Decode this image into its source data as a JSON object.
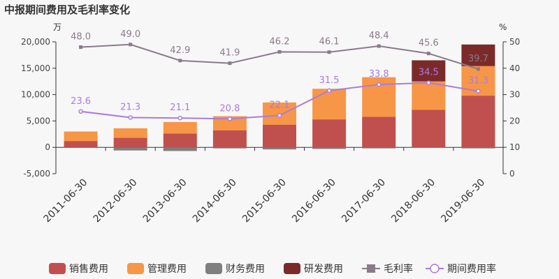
{
  "chart_data": {
    "type": "bar",
    "title": "中报期间费用及毛利率变化",
    "y_left_unit": "万",
    "y_right_unit": "%",
    "categories": [
      "2011-06-30",
      "2012-06-30",
      "2013-06-30",
      "2014-06-30",
      "2015-06-30",
      "2016-06-30",
      "2017-06-30",
      "2018-06-30",
      "2019-06-30"
    ],
    "y_left_lim": [
      -5000,
      20000
    ],
    "y_left_ticks": [
      -5000,
      0,
      5000,
      10000,
      15000,
      20000
    ],
    "y_left_tick_labels": [
      "-5,000",
      "0",
      "5,000",
      "10,000",
      "15,000",
      "20,000"
    ],
    "y_right_lim": [
      0,
      50
    ],
    "y_right_ticks": [
      0,
      10,
      20,
      30,
      40,
      50
    ],
    "stacked": true,
    "grid": false,
    "legend_position": "bottom",
    "bar_series": [
      {
        "name": "销售费用",
        "color": "#c0504d",
        "values": [
          1200,
          1800,
          2600,
          3200,
          4300,
          5300,
          5800,
          7100,
          9800
        ]
      },
      {
        "name": "管理费用",
        "color": "#f79646",
        "values": [
          1800,
          1800,
          2200,
          2700,
          4200,
          5800,
          7500,
          5400,
          5600
        ]
      },
      {
        "name": "财务费用",
        "color": "#7f7f7f",
        "values": [
          -100,
          -600,
          -700,
          -200,
          -400,
          -300,
          -200,
          -100,
          -200
        ]
      },
      {
        "name": "研发费用",
        "color": "#7b2a2a",
        "values": [
          0,
          0,
          0,
          0,
          0,
          0,
          0,
          4000,
          4100
        ]
      }
    ],
    "line_series": [
      {
        "name": "毛利率",
        "color": "#8a7a8a",
        "marker": "square",
        "values": [
          48.0,
          49.0,
          42.9,
          41.9,
          46.2,
          46.1,
          48.4,
          45.6,
          39.7
        ],
        "labels": [
          "48.0",
          "49.0",
          "42.9",
          "41.9",
          "46.2",
          "46.1",
          "48.4",
          "45.6",
          "39.7"
        ]
      },
      {
        "name": "期间费用率",
        "color": "#a97be0",
        "marker": "circle",
        "values": [
          23.6,
          21.3,
          21.1,
          20.8,
          22.1,
          31.5,
          33.8,
          34.5,
          31.3
        ],
        "labels": [
          "23.6",
          "21.3",
          "21.1",
          "20.8",
          "22.1",
          "31.5",
          "33.8",
          "34.5",
          "31.3"
        ]
      }
    ]
  }
}
